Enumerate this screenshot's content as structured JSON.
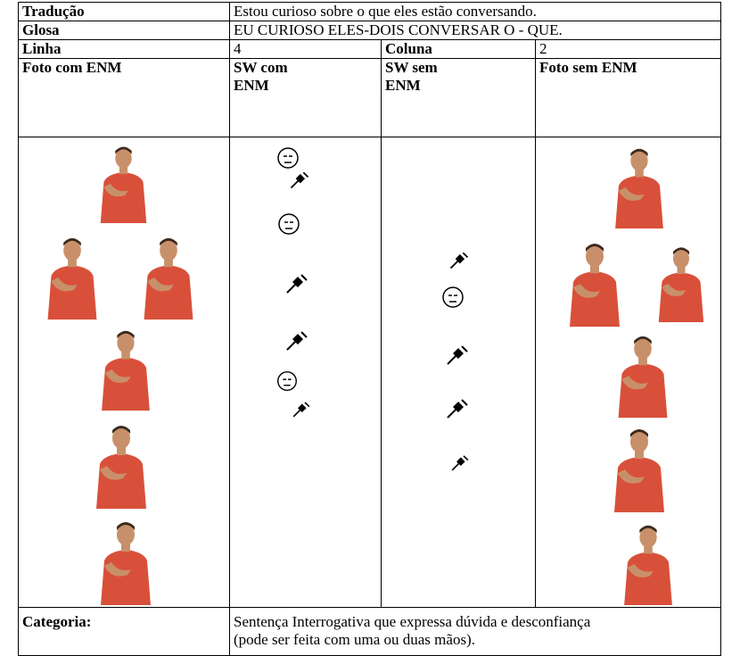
{
  "table": {
    "rows": [
      [
        "Tradução",
        "Estou curioso sobre o que eles estão conversando."
      ],
      [
        "Glosa",
        "EU CURIOSO ELES-DOIS CONVERSAR O - QUE."
      ],
      [
        "Linha",
        4,
        "Coluna",
        2
      ],
      [
        "Foto com ENM",
        "SW com ENM",
        "SW sem ENM",
        "Foto sem ENM"
      ]
    ],
    "category": {
      "label": "Categoria:",
      "text": "Sentença Interrogativa que expressa dúvida e desconfiança (pode ser feita com uma ou duas mãos)."
    }
  }
}
